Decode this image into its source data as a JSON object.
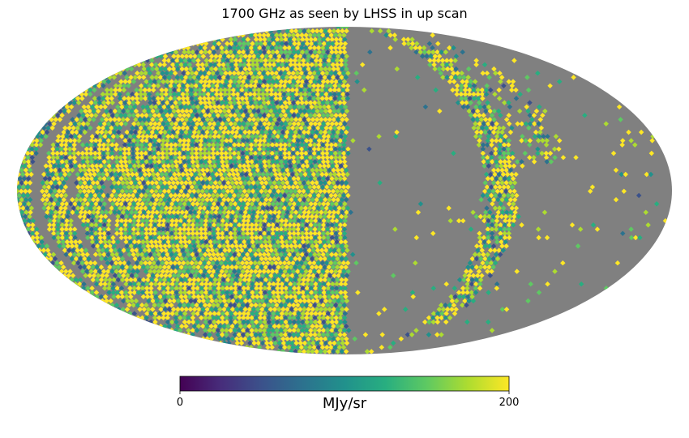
{
  "chart_data": {
    "type": "heatmap",
    "projection": "mollweide",
    "title": "1700 GHz as seen by LHSS in up scan",
    "colormap": "viridis",
    "colorbar": {
      "min": 0,
      "max": 200,
      "tick_labels": [
        "0",
        "200"
      ],
      "unit": "MJy/sr",
      "orientation": "horizontal",
      "placement": "bottom"
    },
    "missing_color": "#808080",
    "coverage": {
      "unobserved_longitude_bands": [
        {
          "from_deg": -10,
          "to_deg": -55,
          "note": "gray crescent right of center"
        },
        {
          "from_deg": -95,
          "to_deg": -180,
          "note": "gray region at far right"
        }
      ],
      "partially_observed_longitude_bands": [
        {
          "from_deg": -55,
          "to_deg": -95
        }
      ]
    }
  }
}
